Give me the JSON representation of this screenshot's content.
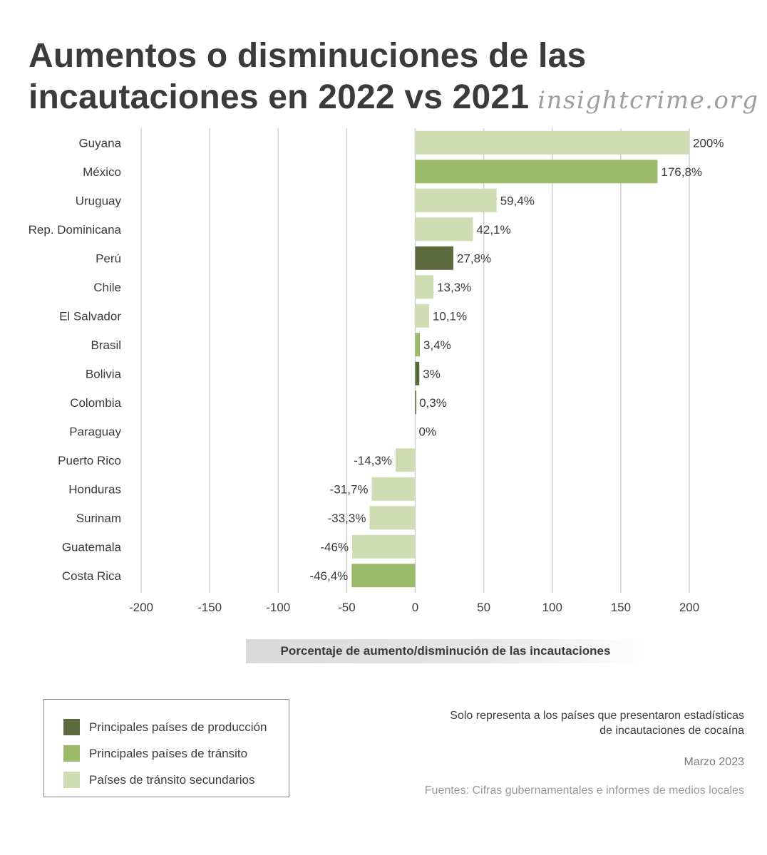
{
  "header": {
    "title_line1": "Aumentos o disminuciones de las",
    "title_line2": "incautaciones en 2022 vs 2021",
    "brand": "insightcrime.org"
  },
  "colors": {
    "produccion": "#5b6a3c",
    "transito": "#9bbb6a",
    "secundario": "#cfddb3",
    "grid": "#d0d0d0",
    "text": "#3a3a3a"
  },
  "chart_data": {
    "type": "bar",
    "orientation": "horizontal",
    "xlim": [
      -200,
      200
    ],
    "xticks": [
      -200,
      -150,
      -100,
      -50,
      0,
      50,
      100,
      150,
      200
    ],
    "xlabel": "Porcentaje de aumento/disminución de las incautaciones",
    "grid": true,
    "categories": [
      "Guyana",
      "México",
      "Uruguay",
      "Rep. Dominicana",
      "Perú",
      "Chile",
      "El Salvador",
      "Brasil",
      "Bolivia",
      "Colombia",
      "Paraguay",
      "Puerto Rico",
      "Honduras",
      "Surinam",
      "Guatemala",
      "Costa Rica"
    ],
    "values": [
      200,
      176.8,
      59.4,
      42.1,
      27.8,
      13.3,
      10.1,
      3.4,
      3,
      0.3,
      0,
      -14.3,
      -31.7,
      -33.3,
      -46,
      -46.4
    ],
    "data_labels": [
      "200%",
      "176,8%",
      "59,4%",
      "42,1%",
      "27,8%",
      "13,3%",
      "10,1%",
      "3,4%",
      "3%",
      "0,3%",
      "0%",
      "-14,3%",
      "-31,7%",
      "-33,3%",
      "-46%",
      "-46,4%"
    ],
    "groups": [
      "secundario",
      "transito",
      "secundario",
      "secundario",
      "produccion",
      "secundario",
      "secundario",
      "transito",
      "produccion",
      "produccion",
      "secundario",
      "secundario",
      "secundario",
      "secundario",
      "secundario",
      "transito"
    ]
  },
  "legend": {
    "items": [
      {
        "key": "produccion",
        "label": "Principales países de producción"
      },
      {
        "key": "transito",
        "label": "Principales países de tránsito"
      },
      {
        "key": "secundario",
        "label": "Países de tránsito secundarios"
      }
    ]
  },
  "footer": {
    "note": "Solo representa a los países que presentaron estadísticas de incautaciones de cocaína",
    "date": "Marzo 2023",
    "sources": "Fuentes: Cifras gubernamentales e informes de medios locales"
  }
}
